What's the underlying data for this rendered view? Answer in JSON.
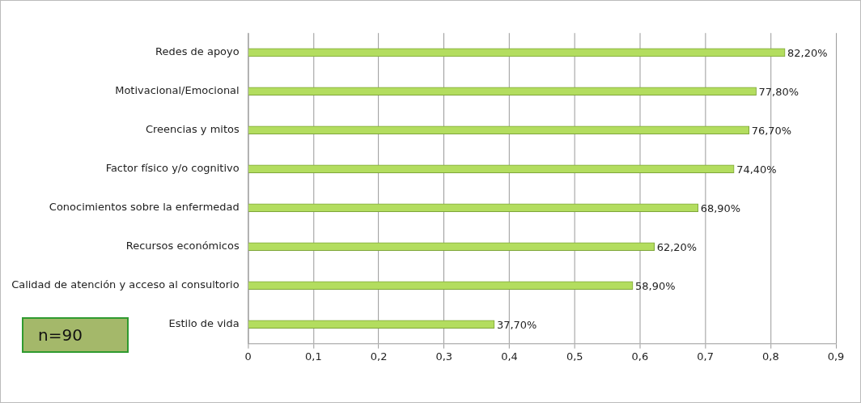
{
  "chart_data": {
    "type": "bar",
    "orientation": "horizontal",
    "categories": [
      "Redes de apoyo",
      "Motivacional/Emocional",
      "Creencias y mitos",
      "Factor físico y/o cognitivo",
      "Conocimientos sobre la enfermedad",
      "Recursos económicos",
      "Calidad de atención y acceso al consultorio",
      "Estilo de vida"
    ],
    "values": [
      0.822,
      0.778,
      0.767,
      0.744,
      0.689,
      0.622,
      0.589,
      0.377
    ],
    "value_labels": [
      "82,20%",
      "77,80%",
      "76,70%",
      "74,40%",
      "68,90%",
      "62,20%",
      "58,90%",
      "37,70%"
    ],
    "color": "#b3dd5f",
    "xlim": [
      0,
      0.9
    ],
    "xticks": [
      0,
      {
        "value": 0.1,
        "label": "0,1"
      },
      {
        "value": 0.2,
        "label": "0,2"
      },
      {
        "value": 0.3,
        "label": "0,3"
      },
      {
        "value": 0.4,
        "label": "0,4"
      },
      {
        "value": 0.5,
        "label": "0,5"
      },
      {
        "value": 0.6,
        "label": "0,6"
      },
      {
        "value": 0.7,
        "label": "0,7"
      },
      {
        "value": 0.8,
        "label": "0,8"
      },
      {
        "value": 0.9,
        "label": "0,9"
      }
    ],
    "grid": "x",
    "annotations": [
      "n=90"
    ]
  }
}
